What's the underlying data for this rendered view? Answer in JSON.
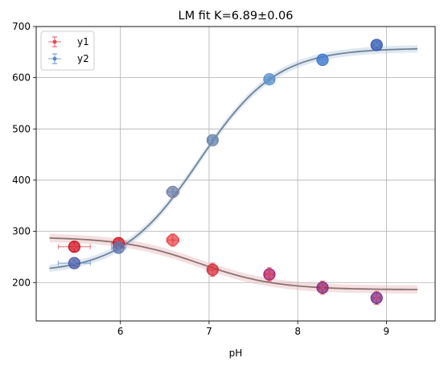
{
  "chart_data": {
    "type": "scatter",
    "title": "LM fit K=6.89±0.06",
    "xlabel": "pH",
    "ylabel": "",
    "xlim": [
      5.05,
      9.55
    ],
    "ylim": [
      125,
      700
    ],
    "xticks": [
      6,
      7,
      8,
      9
    ],
    "yticks": [
      200,
      300,
      400,
      500,
      600,
      700
    ],
    "grid": true,
    "legend": "top-left",
    "series": [
      {
        "name": "y1",
        "color": "#e8474d",
        "x": [
          5.48,
          5.98,
          6.59,
          7.04,
          7.68,
          8.28,
          8.89
        ],
        "y": [
          270,
          277,
          283,
          225,
          216,
          190,
          170
        ],
        "xerr": [
          0.18,
          0.08,
          0.07,
          0.05,
          0.05,
          0.04,
          0.04
        ],
        "yerr": [
          10,
          10,
          12,
          13,
          13,
          13,
          13
        ],
        "fit": {
          "bottom": 186,
          "top": 289,
          "K": 6.89,
          "band": 8
        },
        "marker_colors": [
          "#cc0f1e",
          "#cc1a28",
          "#e8474d",
          "#d2333f",
          "#b11f6a",
          "#8a2a78",
          "#7a2b88"
        ]
      },
      {
        "name": "y2",
        "color": "#5b8fc8",
        "x": [
          5.48,
          5.98,
          6.59,
          7.04,
          7.68,
          8.28,
          8.89
        ],
        "y": [
          238,
          268,
          377,
          478,
          597,
          635,
          664
        ],
        "xerr": [
          0.18,
          0.08,
          0.07,
          0.05,
          0.05,
          0.04,
          0.04
        ],
        "yerr": [
          6,
          6,
          6,
          6,
          6,
          6,
          6
        ],
        "fit": {
          "bottom": 658,
          "top": 219,
          "K": 6.89,
          "band": 7
        },
        "marker_colors": [
          "#4d5aa5",
          "#5f77b0",
          "#7a7fa2",
          "#6a86ab",
          "#5c93cc",
          "#3c75d0",
          "#2e56b5"
        ]
      }
    ],
    "fit_line_colors": [
      "#8b7372",
      "#6f8396"
    ],
    "band_colors": [
      "#e9b8bb",
      "#b7cde3"
    ]
  }
}
